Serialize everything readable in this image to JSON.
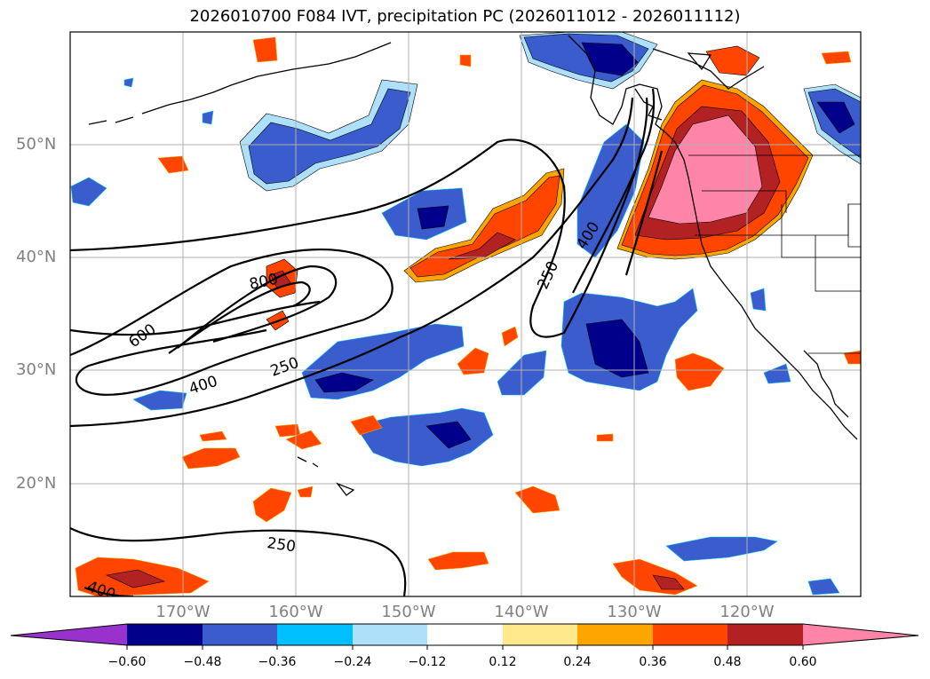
{
  "title": "2026010700 F084 IVT, precipitation PC (2026011012 - 2026011112)",
  "map": {
    "lat_labels": [
      "50°N",
      "40°N",
      "30°N",
      "20°N"
    ],
    "lon_labels": [
      "170°W",
      "160°W",
      "150°W",
      "140°W",
      "130°W",
      "120°W"
    ],
    "grid": true,
    "contour_labels": [
      "800",
      "600",
      "400",
      "250",
      "250",
      "250",
      "400",
      "400"
    ]
  },
  "colorbar": {
    "extend": "both",
    "ticks": [
      "−0.60",
      "−0.48",
      "−0.36",
      "−0.24",
      "−0.12",
      "0.12",
      "0.24",
      "0.36",
      "0.48",
      "0.60"
    ],
    "colors": [
      "#9932cc",
      "#00008b",
      "#3a5ccc",
      "#00bfff",
      "#aee0fa",
      "#ffffff",
      "#ffe98c",
      "#ffa500",
      "#ff4500",
      "#b22222",
      "#ff85a8"
    ]
  }
}
